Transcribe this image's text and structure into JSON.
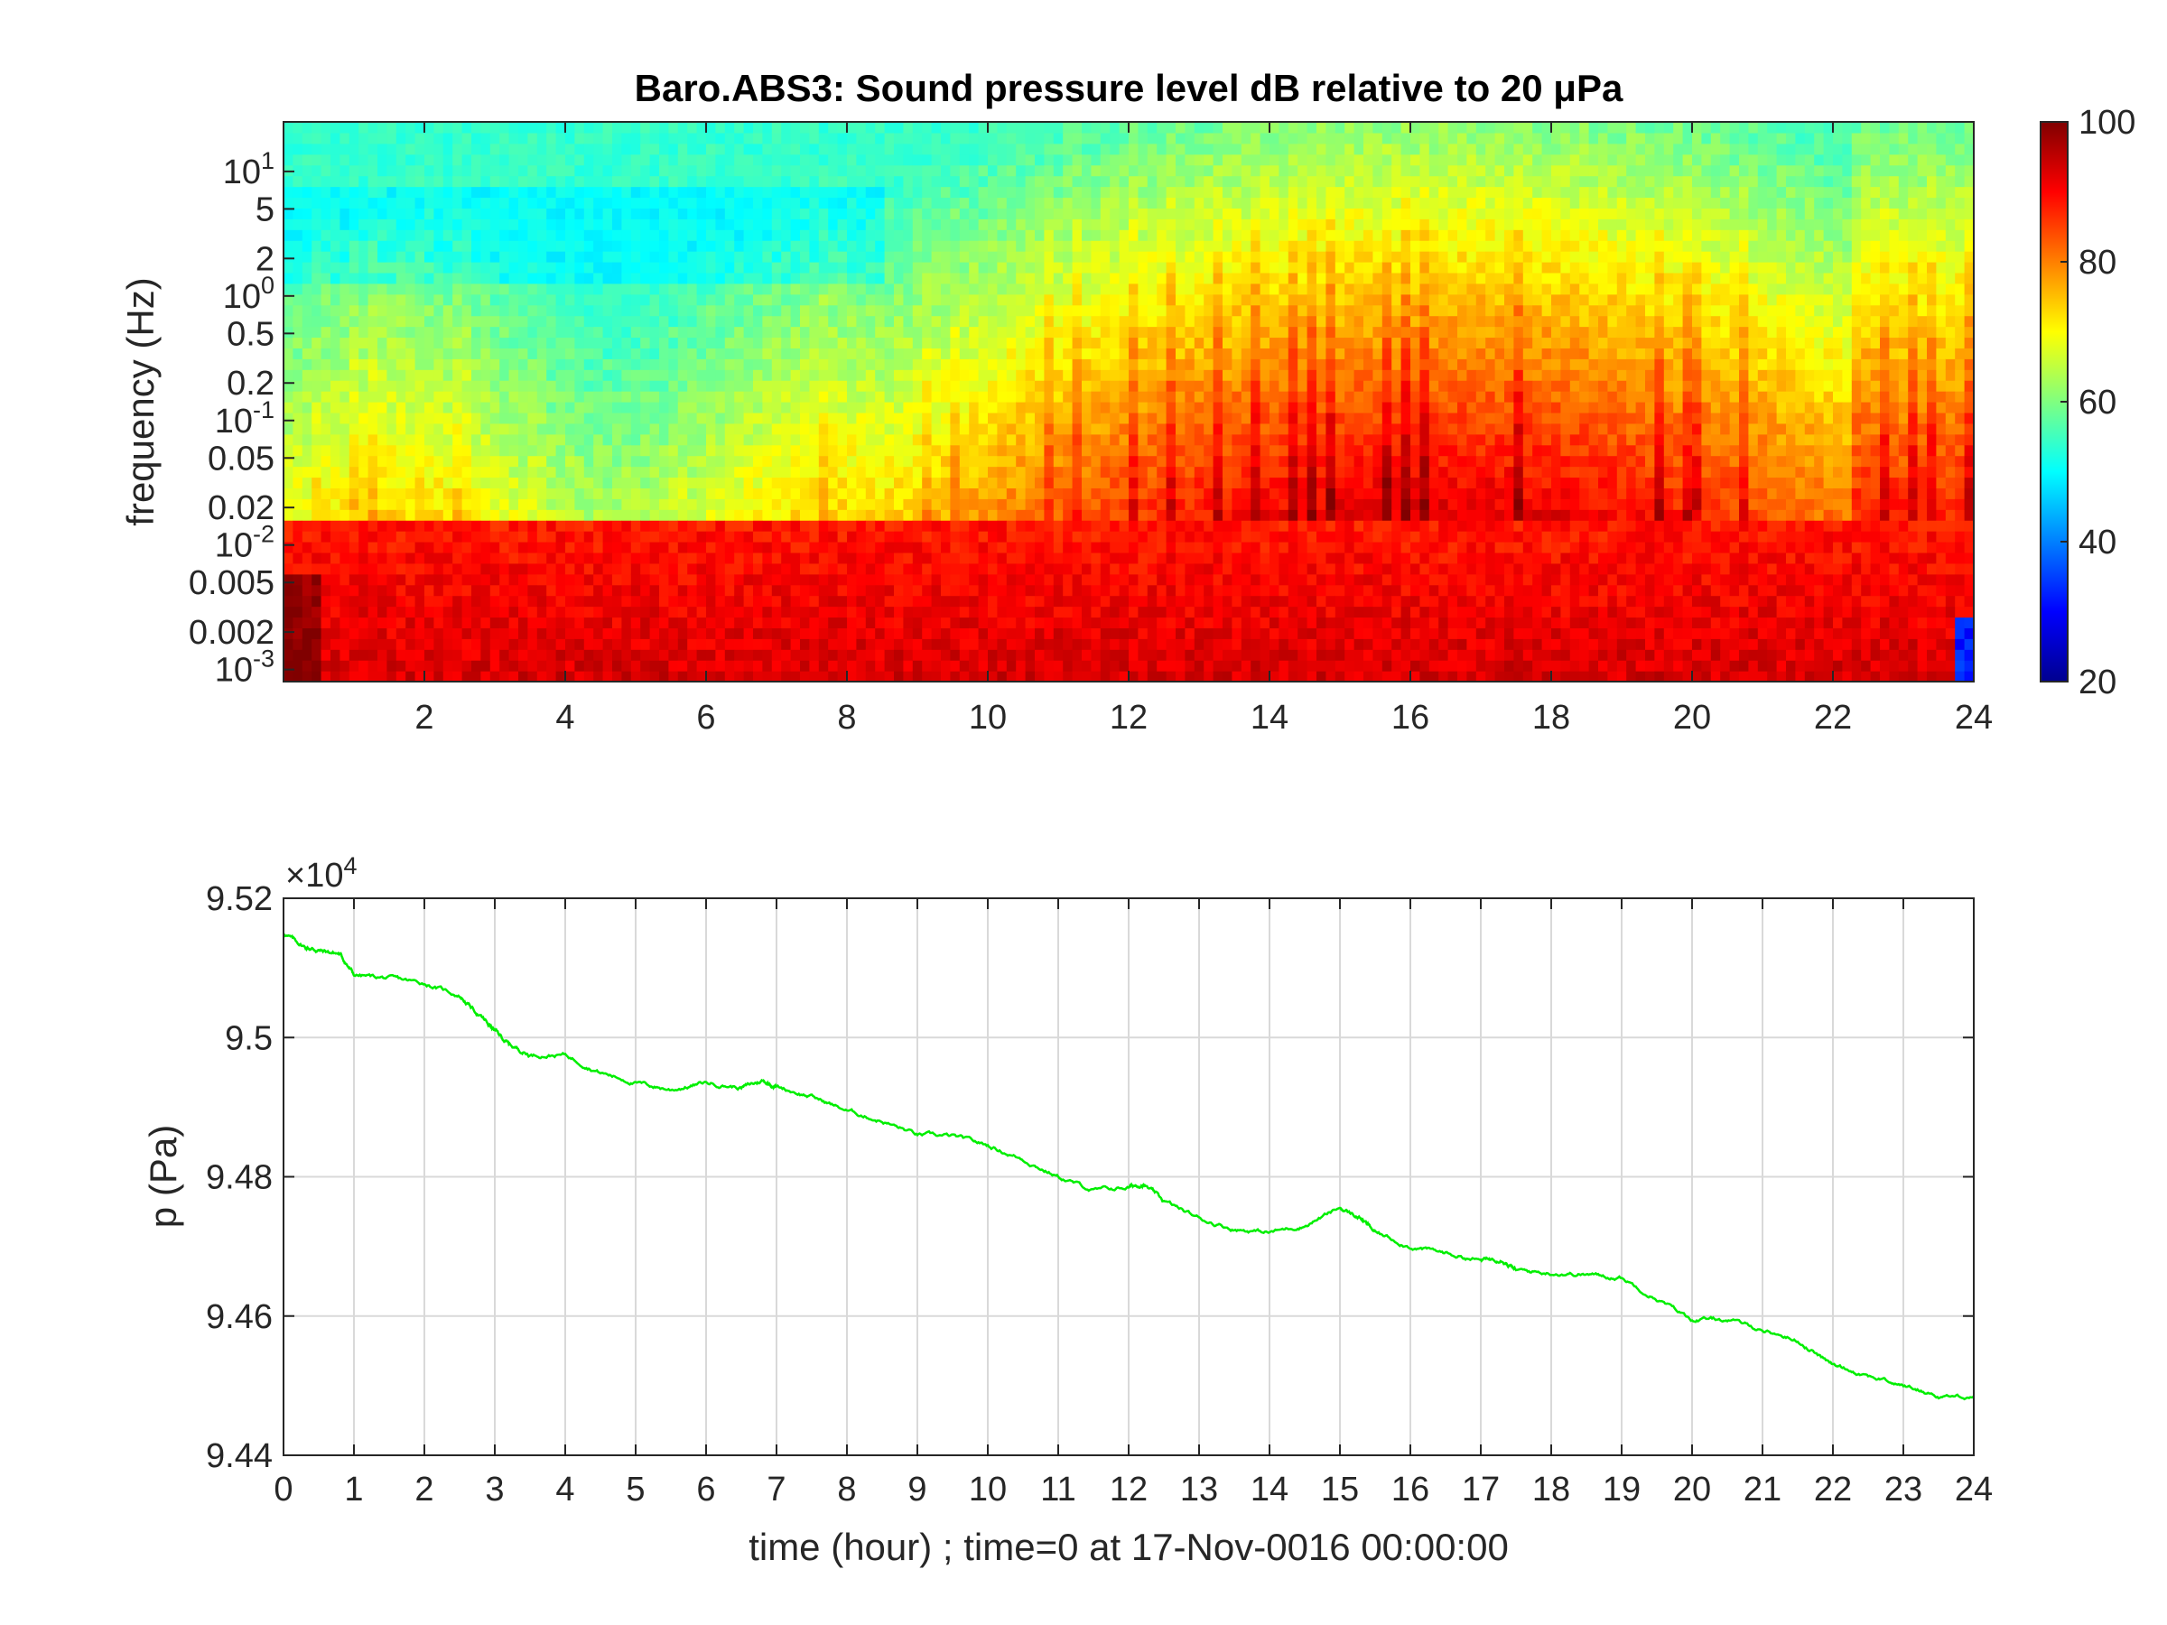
{
  "chart_data": [
    {
      "type": "heatmap",
      "title": "Baro.ABS3: Sound pressure level dB relative to 20 μPa",
      "ylabel": "frequency (Hz)",
      "xlim": [
        0,
        24
      ],
      "ylim_hz": [
        0.0008,
        25
      ],
      "y_scale": "log",
      "x_ticks": [
        "2",
        "4",
        "6",
        "8",
        "10",
        "12",
        "14",
        "16",
        "18",
        "20",
        "22",
        "24"
      ],
      "y_ticks": [
        {
          "base": "10",
          "exp": "1"
        },
        {
          "base": "5",
          "exp": ""
        },
        {
          "base": "2",
          "exp": ""
        },
        {
          "base": "10",
          "exp": "0"
        },
        {
          "base": "0.5",
          "exp": ""
        },
        {
          "base": "0.2",
          "exp": ""
        },
        {
          "base": "10",
          "exp": "-1"
        },
        {
          "base": "0.05",
          "exp": ""
        },
        {
          "base": "0.02",
          "exp": ""
        },
        {
          "base": "10",
          "exp": "-2"
        },
        {
          "base": "0.005",
          "exp": ""
        },
        {
          "base": "0.002",
          "exp": ""
        },
        {
          "base": "10",
          "exp": "-3"
        }
      ],
      "y_tick_values": [
        10,
        5,
        2,
        1,
        0.5,
        0.2,
        0.1,
        0.05,
        0.02,
        0.01,
        0.005,
        0.002,
        0.001
      ],
      "colorbar": {
        "min": 20,
        "max": 100,
        "ticks": [
          "100",
          "80",
          "60",
          "40",
          "20"
        ],
        "tick_values": [
          100,
          80,
          60,
          40,
          20
        ],
        "colormap": "jet"
      },
      "level_profile": {
        "description_units": "approx dB",
        "low_freq_dB": 90,
        "mid_freq_dB": 70,
        "high_freq_dB": 52
      }
    },
    {
      "type": "line",
      "xlabel": "time (hour) ; time=0 at 17-Nov-0016 00:00:00",
      "ylabel": "p (Pa)",
      "y_exponent": {
        "base": "×10",
        "exp": "4"
      },
      "xlim": [
        0,
        24
      ],
      "ylim": [
        94400,
        95200
      ],
      "grid": true,
      "x_ticks": [
        "0",
        "1",
        "2",
        "3",
        "4",
        "5",
        "6",
        "7",
        "8",
        "9",
        "10",
        "11",
        "12",
        "13",
        "14",
        "15",
        "16",
        "17",
        "18",
        "19",
        "20",
        "21",
        "22",
        "23",
        "24"
      ],
      "y_ticks": [
        "9.52",
        "9.5",
        "9.48",
        "9.46",
        "9.44"
      ],
      "y_tick_values": [
        95200,
        95000,
        94800,
        94600,
        94400
      ],
      "color": "#00ee00",
      "series": [
        {
          "x": [
            0,
            0.3,
            0.5,
            0.8,
            1.0,
            1.5,
            2.0,
            2.5,
            2.8,
            3.0,
            3.2,
            3.5,
            4.0,
            4.5,
            5.0,
            5.5,
            6.0,
            6.5,
            6.8,
            7.0,
            7.5,
            8.0,
            8.5,
            9.0,
            9.5,
            10.0,
            10.5,
            11.0,
            11.5,
            12.0,
            12.2,
            12.5,
            13.0,
            13.5,
            14.0,
            14.5,
            15.0,
            15.3,
            15.5,
            16.0,
            16.5,
            17.0,
            17.3,
            17.5,
            18.0,
            18.5,
            19.0,
            19.5,
            20.0,
            20.5,
            21.0,
            21.5,
            22.0,
            22.5,
            23.0,
            23.5,
            24.0
          ],
          "y": [
            95150,
            95130,
            95125,
            95120,
            95090,
            95085,
            95078,
            95060,
            95030,
            95010,
            94990,
            94975,
            94975,
            94950,
            94935,
            94925,
            94935,
            94928,
            94938,
            94930,
            94915,
            94895,
            94880,
            94860,
            94858,
            94845,
            94825,
            94800,
            94780,
            94785,
            94790,
            94765,
            94740,
            94725,
            94720,
            94730,
            94755,
            94740,
            94720,
            94700,
            94690,
            94680,
            94683,
            94665,
            94662,
            94660,
            94655,
            94625,
            94595,
            94595,
            94580,
            94565,
            94530,
            94515,
            94500,
            94485,
            94485
          ]
        }
      ]
    }
  ]
}
